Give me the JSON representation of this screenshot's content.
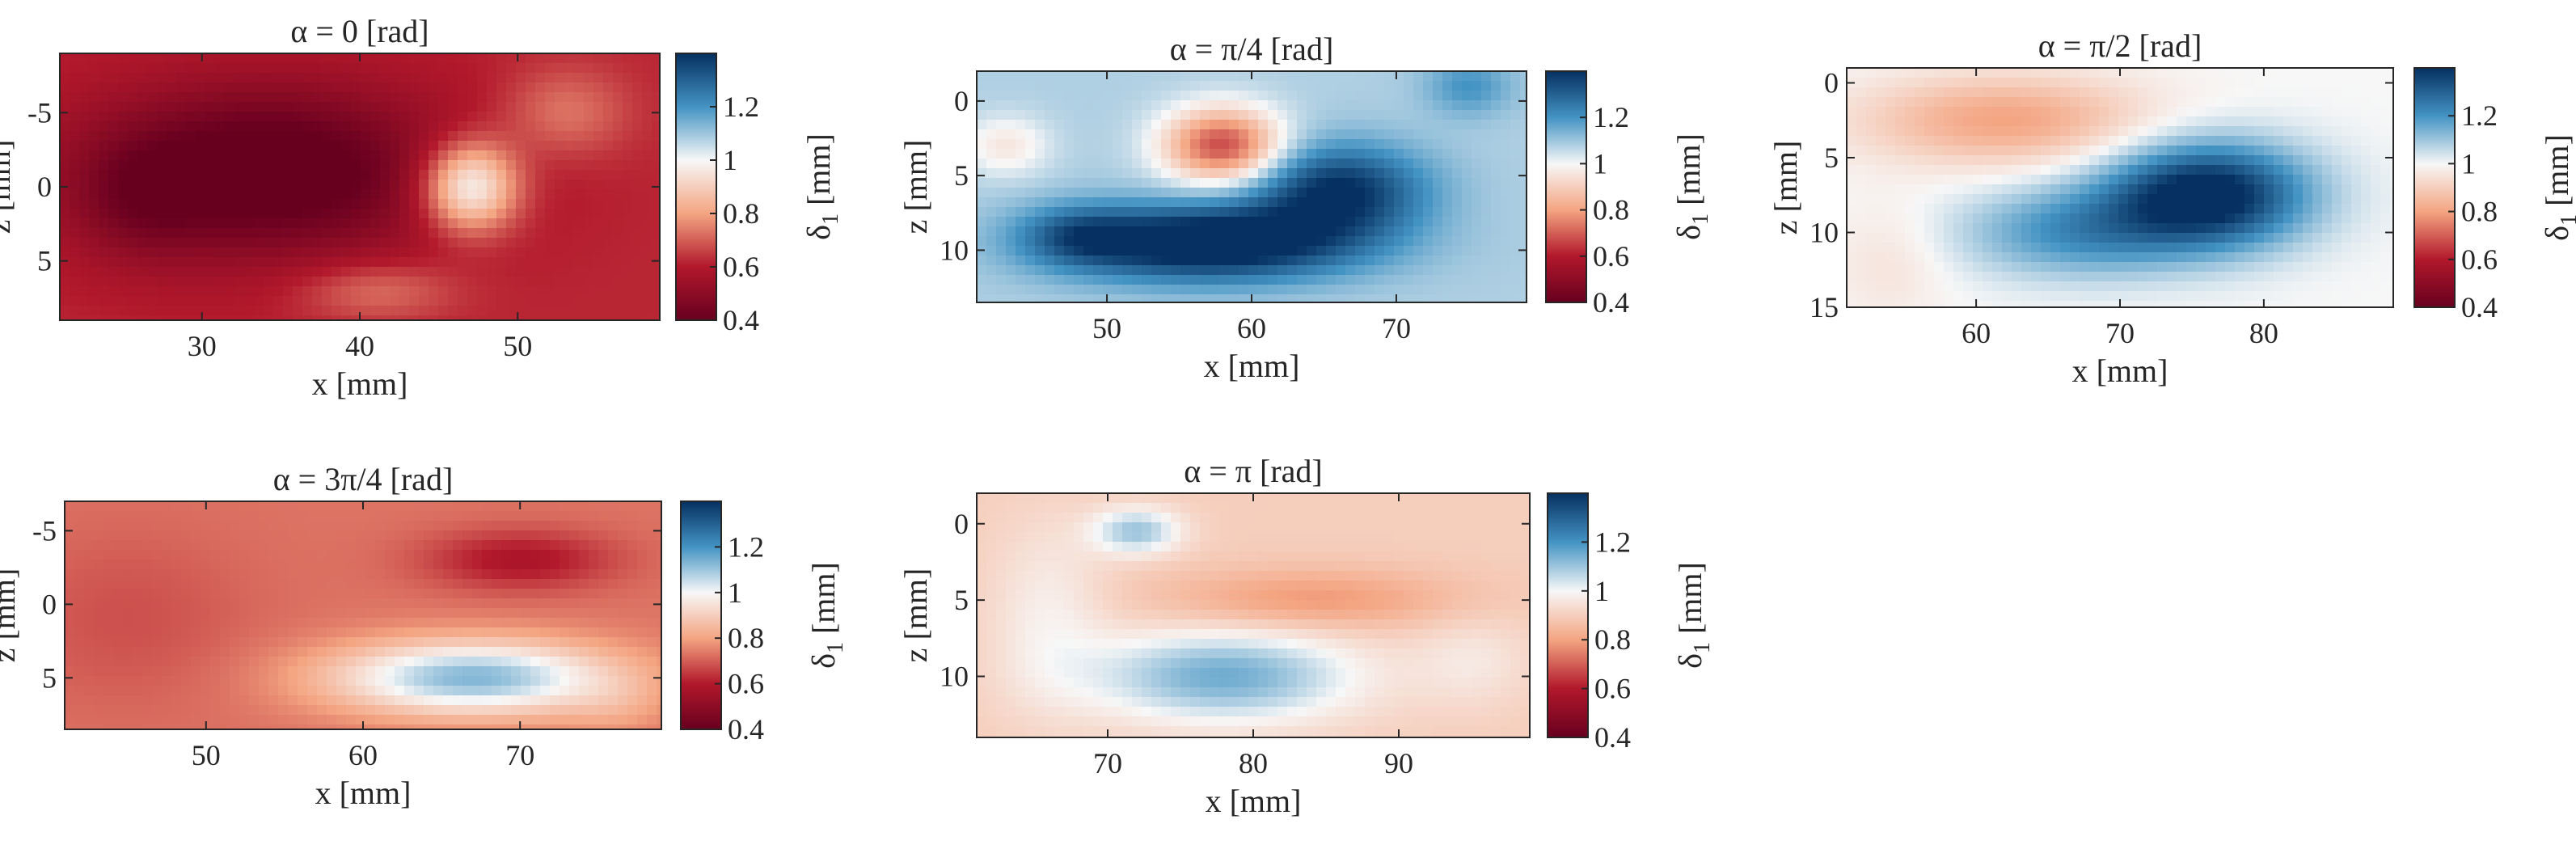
{
  "figure": {
    "colorbar": {
      "label": "δ",
      "label_subscript": "1",
      "label_unit": "[mm]",
      "range": [
        0.4,
        1.4
      ],
      "ticks": [
        0.4,
        0.6,
        0.8,
        1,
        1.2
      ],
      "tick_labels": [
        "0.4",
        "0.6",
        "0.8",
        "1",
        "1.2"
      ],
      "colors": {
        "low": "#67001f",
        "mid_low": "#d6604d",
        "mid": "#f7f7f7",
        "mid_high": "#4393c3",
        "high": "#053061"
      }
    }
  },
  "chart_data": [
    {
      "type": "heatmap",
      "title": "α = 0 [rad]",
      "xlabel": "x [mm]",
      "ylabel": "z [mm]",
      "xlim": [
        21,
        59
      ],
      "ylim": [
        -9,
        9
      ],
      "y_reversed": true,
      "xticks": [
        30,
        40,
        50
      ],
      "xtick_labels": [
        "30",
        "40",
        "50"
      ],
      "yticks": [
        -5,
        0,
        5
      ],
      "ytick_labels": [
        "-5",
        "0",
        "5"
      ],
      "base_value": 0.62,
      "features": [
        {
          "x": 34,
          "z": -1,
          "rx": 12,
          "rz": 6,
          "amp": -0.28
        },
        {
          "x": 26,
          "z": 1,
          "rx": 4,
          "rz": 4,
          "amp": -0.08
        },
        {
          "x": 47,
          "z": 0,
          "rx": 3,
          "rz": 3,
          "amp": 0.42
        },
        {
          "x": 53,
          "z": -5,
          "rx": 4,
          "rz": 3,
          "amp": 0.12
        },
        {
          "x": 41,
          "z": 7,
          "rx": 5,
          "rz": 2,
          "amp": 0.12
        }
      ]
    },
    {
      "type": "heatmap",
      "title": "α = π/4 [rad]",
      "xlabel": "x [mm]",
      "ylabel": "z [mm]",
      "xlim": [
        41,
        79
      ],
      "ylim": [
        -2,
        13.5
      ],
      "y_reversed": true,
      "xticks": [
        50,
        60,
        70
      ],
      "xtick_labels": [
        "50",
        "60",
        "70"
      ],
      "yticks": [
        0,
        5,
        10
      ],
      "ytick_labels": [
        "0",
        "5",
        "10"
      ],
      "base_value": 1.08,
      "features": [
        {
          "x": 57,
          "z": 9.5,
          "rx": 10,
          "rz": 2.5,
          "amp": 0.42
        },
        {
          "x": 66,
          "z": 6,
          "rx": 6,
          "rz": 3,
          "amp": 0.32
        },
        {
          "x": 48,
          "z": 9,
          "rx": 4,
          "rz": 2,
          "amp": 0.15
        },
        {
          "x": 58,
          "z": 3,
          "rx": 4,
          "rz": 2.5,
          "amp": -0.42
        },
        {
          "x": 43,
          "z": 3,
          "rx": 3,
          "rz": 2,
          "amp": -0.12
        },
        {
          "x": 75,
          "z": -1,
          "rx": 3,
          "rz": 2,
          "amp": 0.12
        }
      ]
    },
    {
      "type": "heatmap",
      "title": "α = π/2 [rad]",
      "xlabel": "x [mm]",
      "ylabel": "z [mm]",
      "xlim": [
        51,
        89
      ],
      "ylim": [
        -1,
        15
      ],
      "y_reversed": true,
      "xticks": [
        60,
        70,
        80
      ],
      "xtick_labels": [
        "60",
        "70",
        "80"
      ],
      "yticks": [
        0,
        5,
        10,
        15
      ],
      "ytick_labels": [
        "0",
        "5",
        "10",
        "15"
      ],
      "base_value": 1.0,
      "features": [
        {
          "x": 76,
          "z": 7.5,
          "rx": 7,
          "rz": 3.5,
          "amp": 0.45
        },
        {
          "x": 67,
          "z": 10,
          "rx": 8,
          "rz": 3,
          "amp": 0.2
        },
        {
          "x": 62,
          "z": 2.5,
          "rx": 10,
          "rz": 3,
          "amp": -0.2
        },
        {
          "x": 54,
          "z": 12,
          "rx": 4,
          "rz": 4,
          "amp": -0.05
        }
      ]
    },
    {
      "type": "heatmap",
      "title": "α = 3π/4 [rad]",
      "xlabel": "x [mm]",
      "ylabel": "z [mm]",
      "xlim": [
        41,
        79
      ],
      "ylim": [
        -7,
        8.5
      ],
      "y_reversed": true,
      "xticks": [
        50,
        60,
        70
      ],
      "xtick_labels": [
        "50",
        "60",
        "70"
      ],
      "yticks": [
        -5,
        0,
        5
      ],
      "ytick_labels": [
        "-5",
        "0",
        "5"
      ],
      "base_value": 0.73,
      "features": [
        {
          "x": 67,
          "z": 5,
          "rx": 9,
          "rz": 2.5,
          "amp": 0.4
        },
        {
          "x": 70,
          "z": -3,
          "rx": 6,
          "rz": 2,
          "amp": -0.15
        },
        {
          "x": 45,
          "z": 1,
          "rx": 8,
          "rz": 6,
          "amp": -0.05
        },
        {
          "x": 76,
          "z": 7,
          "rx": 3,
          "rz": 2,
          "amp": 0.05
        }
      ]
    },
    {
      "type": "heatmap",
      "title": "α = π [rad]",
      "xlabel": "x [mm]",
      "ylabel": "z [mm]",
      "xlim": [
        61,
        99
      ],
      "ylim": [
        -2,
        14
      ],
      "y_reversed": true,
      "xticks": [
        70,
        80,
        90
      ],
      "xtick_labels": [
        "70",
        "80",
        "90"
      ],
      "yticks": [
        0,
        5,
        10
      ],
      "ytick_labels": [
        "0",
        "5",
        "10"
      ],
      "base_value": 0.9,
      "features": [
        {
          "x": 78,
          "z": 10,
          "rx": 9,
          "rz": 3,
          "amp": 0.25
        },
        {
          "x": 72,
          "z": 0.5,
          "rx": 3,
          "rz": 1.5,
          "amp": 0.2
        },
        {
          "x": 66,
          "z": 6,
          "rx": 4,
          "rz": 6,
          "amp": 0.08
        },
        {
          "x": 84,
          "z": 5,
          "rx": 10,
          "rz": 2,
          "amp": -0.12
        },
        {
          "x": 95,
          "z": 9,
          "rx": 4,
          "rz": 3,
          "amp": 0.06
        }
      ]
    }
  ]
}
